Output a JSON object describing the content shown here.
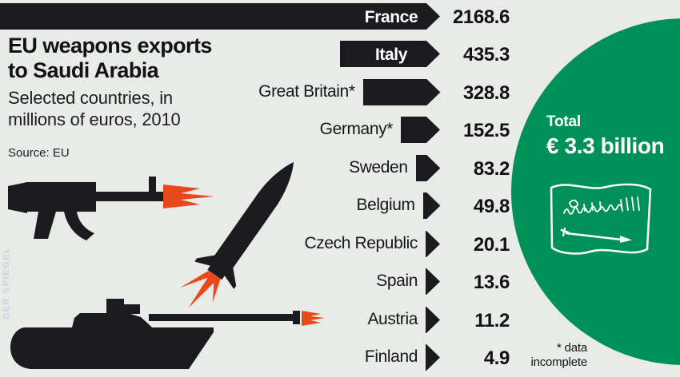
{
  "colors": {
    "background": "#e9ebe8",
    "bar": "#1b1b1f",
    "accent_green": "#009158",
    "flame_orange": "#e8491c",
    "watermark": "#c9d5da"
  },
  "header": {
    "title_line1": "EU weapons exports",
    "title_line2": "to Saudi Arabia",
    "subtitle_line1": "Selected countries, in",
    "subtitle_line2": "millions of euros, 2010",
    "source": "Source: EU"
  },
  "chart_data": {
    "type": "bar",
    "orientation": "horizontal",
    "title": "EU weapons exports to Saudi Arabia",
    "subtitle": "Selected countries, in millions of euros, 2010",
    "source": "EU",
    "unit": "millions of euros",
    "year": "2010",
    "categories": [
      "France",
      "Italy",
      "Great Britain*",
      "Germany*",
      "Sweden",
      "Belgium",
      "Czech Republic",
      "Spain",
      "Austria",
      "Finland"
    ],
    "values": [
      2168.6,
      435.3,
      328.8,
      152.5,
      83.2,
      49.8,
      20.1,
      13.6,
      11.2,
      4.9
    ],
    "total": {
      "label": "Total",
      "amount": "€ 3.3 billion"
    },
    "footnote_line1": "* data",
    "footnote_line2": "incomplete",
    "legend": "none",
    "grid": false
  },
  "watermark": "DER SPIEGEL",
  "decorations": [
    "assault-rifle",
    "rocket",
    "tank",
    "saudi-arabia-flag",
    "muzzle-flash"
  ]
}
